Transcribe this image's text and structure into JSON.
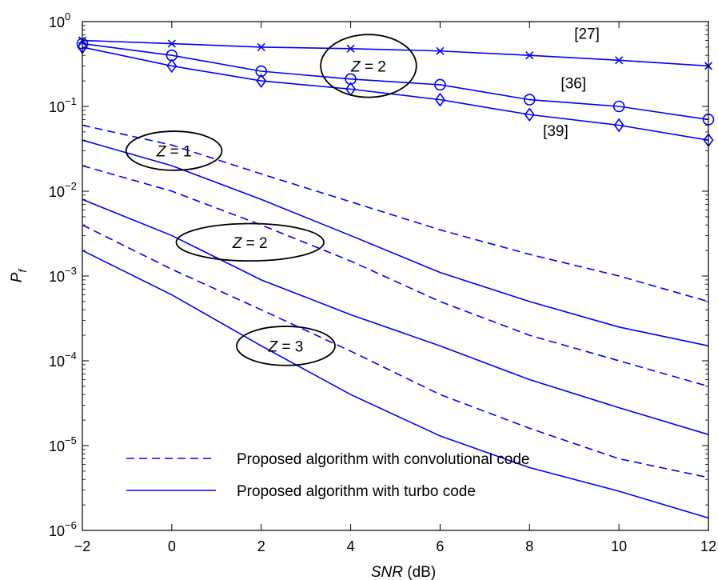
{
  "chart_data": {
    "type": "line",
    "xlabel": {
      "var": "SNR",
      "unit": " (dB)"
    },
    "ylabel": {
      "base": "P",
      "sub": "f"
    },
    "xlim": [
      -2,
      12
    ],
    "ylim": [
      1e-06,
      1
    ],
    "yscale": "log",
    "xticks": [
      "−2",
      "0",
      "2",
      "4",
      "6",
      "8",
      "10",
      "12"
    ],
    "xtick_values": [
      -2,
      0,
      2,
      4,
      6,
      8,
      10,
      12
    ],
    "yticks": [
      {
        "exp": 0,
        "base": "10",
        "label": "0"
      },
      {
        "exp": -1,
        "base": "10",
        "label": "−1"
      },
      {
        "exp": -2,
        "base": "10",
        "label": "−2"
      },
      {
        "exp": -3,
        "base": "10",
        "label": "−3"
      },
      {
        "exp": -4,
        "base": "10",
        "label": "−4"
      },
      {
        "exp": -5,
        "base": "10",
        "label": "−5"
      },
      {
        "exp": -6,
        "base": "10",
        "label": "−6"
      }
    ],
    "grid": false,
    "legend_position": "bottom-left",
    "legend": [
      {
        "label": "Proposed algorithm with convolutional code",
        "style": "dashed"
      },
      {
        "label": "Proposed algorithm with turbo code",
        "style": "solid"
      }
    ],
    "series": [
      {
        "name": "[27]",
        "style": "solid",
        "marker": "x",
        "x": [
          -2,
          0,
          2,
          4,
          6,
          8,
          10,
          12
        ],
        "y": [
          0.6,
          0.55,
          0.5,
          0.48,
          0.45,
          0.4,
          0.35,
          0.3
        ]
      },
      {
        "name": "[36]",
        "style": "solid",
        "marker": "o",
        "x": [
          -2,
          0,
          2,
          4,
          6,
          8,
          10,
          12
        ],
        "y": [
          0.55,
          0.4,
          0.26,
          0.21,
          0.18,
          0.12,
          0.1,
          0.07
        ]
      },
      {
        "name": "[39]",
        "style": "solid",
        "marker": "diamond",
        "x": [
          -2,
          0,
          2,
          4,
          6,
          8,
          10,
          12
        ],
        "y": [
          0.5,
          0.3,
          0.2,
          0.16,
          0.12,
          0.08,
          0.06,
          0.04
        ]
      },
      {
        "style": "dashed",
        "marker": "none",
        "group": "Z = 1",
        "x": [
          -2,
          0,
          2,
          4,
          6,
          8,
          10,
          12
        ],
        "y": [
          0.06,
          0.035,
          0.016,
          0.0075,
          0.0035,
          0.0018,
          0.001,
          0.0005
        ]
      },
      {
        "style": "solid",
        "marker": "none",
        "group": "Z = 1",
        "x": [
          -2,
          0,
          2,
          4,
          6,
          8,
          10,
          12
        ],
        "y": [
          0.04,
          0.02,
          0.008,
          0.003,
          0.0011,
          0.0005,
          0.00025,
          0.00015
        ]
      },
      {
        "style": "dashed",
        "marker": "none",
        "group": "Z = 2",
        "x": [
          -2,
          0,
          2,
          4,
          6,
          8,
          10,
          12
        ],
        "y": [
          0.02,
          0.01,
          0.004,
          0.0015,
          0.0005,
          0.0002,
          0.0001,
          5e-05
        ]
      },
      {
        "style": "solid",
        "marker": "none",
        "group": "Z = 2",
        "x": [
          -2,
          0,
          2,
          4,
          6,
          8,
          10,
          12
        ],
        "y": [
          0.008,
          0.003,
          0.0009,
          0.00035,
          0.00015,
          6e-05,
          2.8e-05,
          1.35e-05
        ]
      },
      {
        "style": "dashed",
        "marker": "none",
        "group": "Z = 3",
        "x": [
          -2,
          0,
          2,
          4,
          6,
          8,
          10,
          12
        ],
        "y": [
          0.004,
          0.0012,
          0.0004,
          0.00013,
          4e-05,
          1.6e-05,
          7e-06,
          4.2e-06
        ]
      },
      {
        "style": "solid",
        "marker": "none",
        "group": "Z = 3",
        "x": [
          -2,
          0,
          2,
          4,
          6,
          8,
          10,
          12
        ],
        "y": [
          0.002,
          0.0006,
          0.00015,
          4e-05,
          1.3e-05,
          5.5e-06,
          2.9e-06,
          1.4e-06
        ]
      }
    ],
    "ellipses": [
      {
        "var": "Z",
        "text": " = 2",
        "cx": 4.4,
        "cy": 0.3,
        "rx_data": 1.07,
        "ry_decades": 0.37
      },
      {
        "var": "Z",
        "text": " = 1",
        "cx": 0.05,
        "cy": 0.03,
        "rx_data": 1.07,
        "ry_decades": 0.23
      },
      {
        "var": "Z",
        "text": " = 2",
        "cx": 1.75,
        "cy": 0.0025,
        "rx_data": 1.65,
        "ry_decades": 0.22
      },
      {
        "var": "Z",
        "text": " = 3",
        "cx": 2.55,
        "cy": 0.00015,
        "rx_data": 1.1,
        "ry_decades": 0.23
      }
    ],
    "annotations": [
      {
        "text": "[27]",
        "x": 9.0,
        "y": 0.73
      },
      {
        "text": "[36]",
        "x": 8.7,
        "y": 0.19
      },
      {
        "text": "[39]",
        "x": 8.3,
        "y": 0.052
      }
    ],
    "colors": {
      "series": "#0000ff",
      "ellipse": "#000000",
      "axes": "#000000"
    }
  }
}
